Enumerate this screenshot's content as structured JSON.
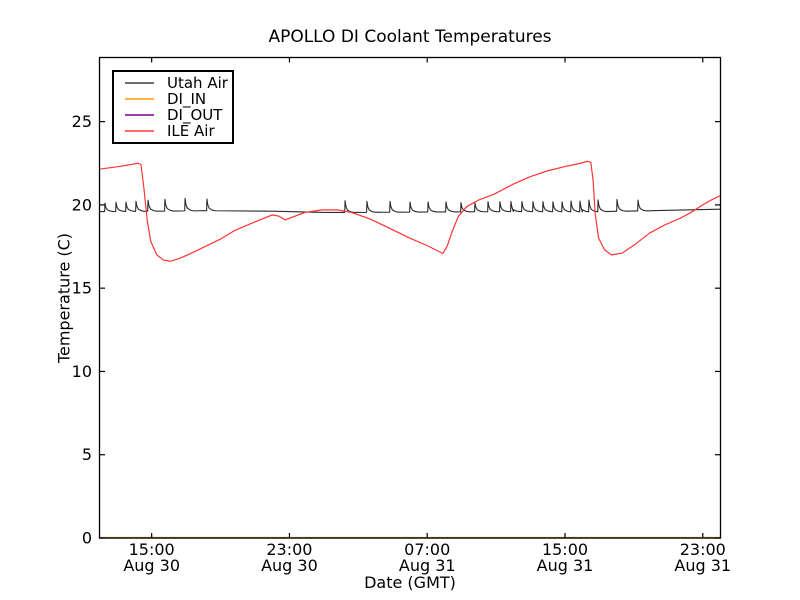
{
  "chart_data": {
    "type": "line",
    "title": "APOLLO DI Coolant Temperatures",
    "xlabel": "Date (GMT)",
    "ylabel": "Temperature (C)",
    "background_color": "#ffffff",
    "axis_color": "#000000",
    "grid": false,
    "ylim": [
      0,
      28.85
    ],
    "yticks": [
      0,
      5,
      10,
      15,
      20,
      25
    ],
    "x_hours_range": [
      0,
      36
    ],
    "x_start_label": "Aug 30 12:00",
    "xticks": [
      {
        "hour": 3,
        "time": "15:00",
        "date": "Aug 30"
      },
      {
        "hour": 11,
        "time": "23:00",
        "date": "Aug 30"
      },
      {
        "hour": 19,
        "time": "07:00",
        "date": "Aug 31"
      },
      {
        "hour": 27,
        "time": "15:00",
        "date": "Aug 31"
      },
      {
        "hour": 35,
        "time": "23:00",
        "date": "Aug 31"
      }
    ],
    "legend": {
      "position": "upper-left",
      "items": [
        {
          "label": "Utah Air",
          "color": "#6e6e6e"
        },
        {
          "label": "DI_IN",
          "color": "#ffb347"
        },
        {
          "label": "DI_OUT",
          "color": "#9a3fa5"
        },
        {
          "label": "ILE Air",
          "color": "#ff6b66"
        }
      ]
    },
    "series": [
      {
        "name": "Utah Air",
        "color": "#2a2a2a",
        "style": "baseline-with-spikes",
        "baseline": [
          [
            0,
            19.6
          ],
          [
            6,
            19.65
          ],
          [
            10,
            19.62
          ],
          [
            13,
            19.55
          ],
          [
            14.2,
            19.55
          ],
          [
            20,
            19.58
          ],
          [
            24,
            19.6
          ],
          [
            28,
            19.58
          ],
          [
            30,
            19.62
          ],
          [
            32,
            19.65
          ],
          [
            34,
            19.7
          ],
          [
            36,
            19.74
          ]
        ],
        "spikes": [
          [
            0.29,
            0.5
          ],
          [
            0.93,
            0.55
          ],
          [
            1.51,
            0.55
          ],
          [
            2.09,
            0.6
          ],
          [
            2.79,
            0.65
          ],
          [
            3.77,
            0.7
          ],
          [
            4.94,
            0.75
          ],
          [
            6.21,
            0.7
          ],
          [
            14.23,
            0.7
          ],
          [
            15.5,
            0.65
          ],
          [
            16.84,
            0.65
          ],
          [
            18.0,
            0.6
          ],
          [
            19.05,
            0.6
          ],
          [
            20.09,
            0.6
          ],
          [
            20.96,
            0.55
          ],
          [
            21.77,
            0.55
          ],
          [
            22.53,
            0.6
          ],
          [
            23.22,
            0.6
          ],
          [
            23.86,
            0.6
          ],
          [
            24.5,
            0.6
          ],
          [
            25.14,
            0.6
          ],
          [
            25.72,
            0.6
          ],
          [
            26.3,
            0.6
          ],
          [
            26.83,
            0.6
          ],
          [
            27.35,
            0.65
          ],
          [
            27.87,
            0.65
          ],
          [
            28.39,
            0.7
          ],
          [
            28.92,
            0.7
          ],
          [
            30.02,
            0.7
          ],
          [
            31.24,
            0.65
          ]
        ]
      },
      {
        "name": "DI_IN",
        "color": "#ffa500",
        "style": "line",
        "points": [
          [
            0,
            0
          ],
          [
            36,
            0
          ]
        ]
      },
      {
        "name": "DI_OUT",
        "color": "#8a2b92",
        "style": "line",
        "points": [
          [
            0,
            0
          ],
          [
            36,
            0
          ]
        ]
      },
      {
        "name": "ILE Air",
        "color": "#ff3333",
        "style": "line",
        "points": [
          [
            0,
            22.15
          ],
          [
            1.1,
            22.3
          ],
          [
            2.2,
            22.5
          ],
          [
            2.38,
            22.42
          ],
          [
            2.55,
            21.0
          ],
          [
            2.75,
            19.0
          ],
          [
            2.95,
            17.8
          ],
          [
            3.3,
            17.0
          ],
          [
            3.7,
            16.68
          ],
          [
            4.1,
            16.62
          ],
          [
            4.6,
            16.78
          ],
          [
            5.2,
            17.05
          ],
          [
            6.1,
            17.5
          ],
          [
            7.0,
            17.95
          ],
          [
            7.8,
            18.45
          ],
          [
            8.7,
            18.85
          ],
          [
            9.4,
            19.15
          ],
          [
            10.0,
            19.4
          ],
          [
            10.4,
            19.32
          ],
          [
            10.75,
            19.1
          ],
          [
            11.2,
            19.28
          ],
          [
            11.9,
            19.55
          ],
          [
            12.9,
            19.7
          ],
          [
            13.8,
            19.7
          ],
          [
            14.6,
            19.55
          ],
          [
            15.7,
            19.15
          ],
          [
            16.8,
            18.6
          ],
          [
            18.0,
            18.0
          ],
          [
            18.9,
            17.6
          ],
          [
            19.5,
            17.3
          ],
          [
            19.9,
            17.08
          ],
          [
            20.15,
            17.5
          ],
          [
            20.45,
            18.4
          ],
          [
            20.8,
            19.3
          ],
          [
            21.3,
            19.9
          ],
          [
            22.0,
            20.3
          ],
          [
            22.9,
            20.65
          ],
          [
            24.0,
            21.25
          ],
          [
            25.0,
            21.7
          ],
          [
            26.0,
            22.05
          ],
          [
            27.0,
            22.3
          ],
          [
            27.9,
            22.5
          ],
          [
            28.3,
            22.62
          ],
          [
            28.5,
            22.55
          ],
          [
            28.63,
            21.5
          ],
          [
            28.75,
            19.5
          ],
          [
            28.95,
            18.0
          ],
          [
            29.3,
            17.3
          ],
          [
            29.7,
            17.0
          ],
          [
            30.3,
            17.1
          ],
          [
            31.1,
            17.65
          ],
          [
            31.9,
            18.3
          ],
          [
            32.8,
            18.8
          ],
          [
            33.7,
            19.2
          ],
          [
            34.4,
            19.6
          ],
          [
            35.0,
            20.0
          ],
          [
            35.5,
            20.3
          ],
          [
            36.0,
            20.55
          ]
        ]
      }
    ]
  }
}
